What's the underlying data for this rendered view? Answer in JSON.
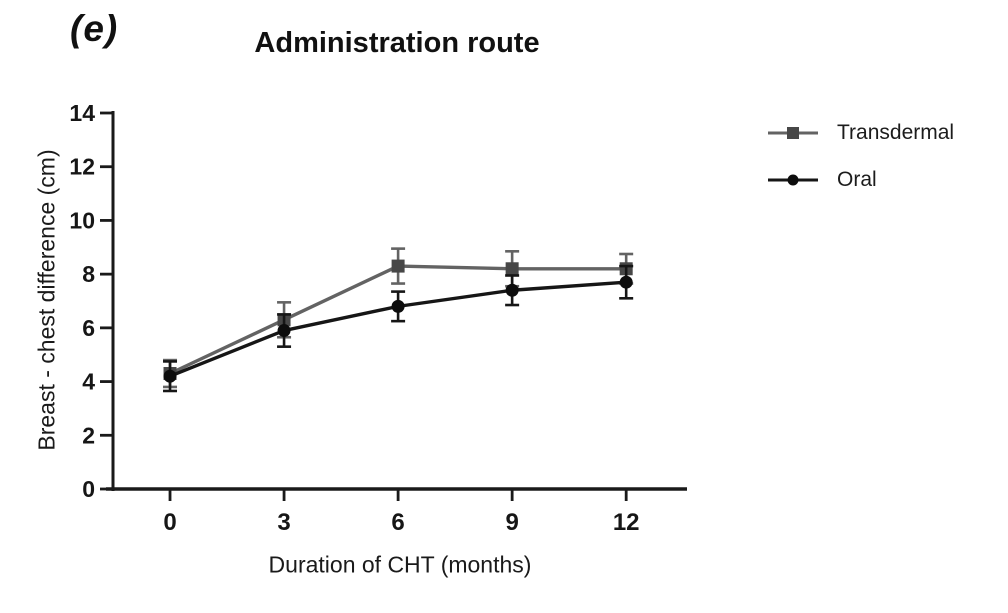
{
  "figure": {
    "panel_label": "(e)"
  },
  "chart_data": {
    "type": "line",
    "title": "Administration route",
    "xlabel": "Duration of CHT (months)",
    "ylabel": "Breast - chest difference (cm)",
    "x": [
      0,
      3,
      6,
      9,
      12
    ],
    "xticks": [
      0,
      3,
      6,
      9,
      12
    ],
    "yticks": [
      0,
      2,
      4,
      6,
      8,
      10,
      12,
      14
    ],
    "xlim": [
      -1.5,
      13.6
    ],
    "ylim": [
      0,
      14
    ],
    "grid": false,
    "legend_position": "right-outside",
    "error_bars": true,
    "series": [
      {
        "name": "Transdermal",
        "marker": "square",
        "color": "#636363",
        "marker_color": "#474747",
        "values": [
          4.3,
          6.3,
          8.3,
          8.2,
          8.2
        ],
        "errors": [
          0.5,
          0.65,
          0.65,
          0.65,
          0.55
        ]
      },
      {
        "name": "Oral",
        "marker": "circle",
        "color": "#161616",
        "marker_color": "#0d0d0d",
        "values": [
          4.2,
          5.9,
          6.8,
          7.4,
          7.7
        ],
        "errors": [
          0.55,
          0.6,
          0.55,
          0.55,
          0.6
        ]
      }
    ],
    "colors": {
      "axis": "#1a1a1a",
      "tick_text": "#161616"
    }
  }
}
